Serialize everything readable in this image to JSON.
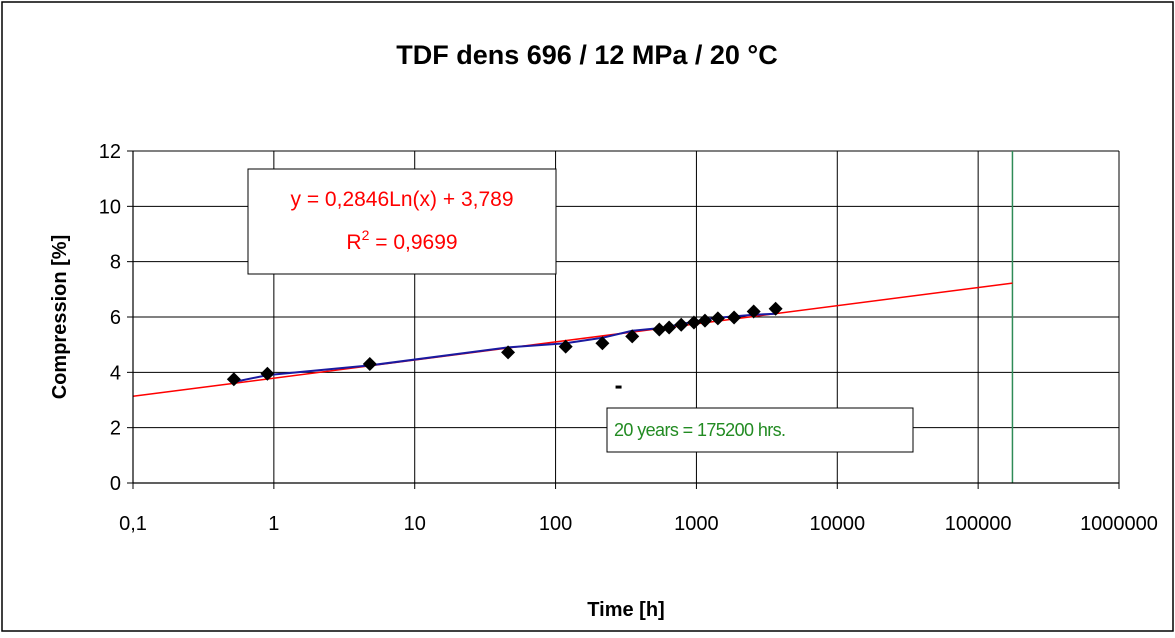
{
  "chart_data": {
    "type": "scatter",
    "title": "TDF dens 696 / 12 MPa / 20 °C",
    "xlabel": "Time [h]",
    "ylabel": "Compression [%]",
    "x_scale": "log",
    "xlim": [
      0.1,
      1000000
    ],
    "ylim": [
      0,
      12
    ],
    "x_tick_labels": [
      "0,1",
      "1",
      "10",
      "100",
      "1000",
      "10000",
      "100000",
      "1000000"
    ],
    "x_tick_values": [
      0.1,
      1,
      10,
      100,
      1000,
      10000,
      100000,
      1000000
    ],
    "y_ticks": [
      0,
      2,
      4,
      6,
      8,
      10,
      12
    ],
    "grid": true,
    "legend": "none",
    "series": [
      {
        "marker": "diamond",
        "color": "#000000",
        "x": [
          0.52,
          0.9,
          4.8,
          46,
          118,
          215,
          350,
          545,
          640,
          780,
          960,
          1150,
          1420,
          1850,
          2550,
          3650
        ],
        "y": [
          3.75,
          3.95,
          4.3,
          4.72,
          4.93,
          5.05,
          5.3,
          5.55,
          5.62,
          5.72,
          5.8,
          5.87,
          5.95,
          5.98,
          6.2,
          6.3
        ]
      }
    ],
    "connecting_line": {
      "color": "#1a1aa0",
      "x": [
        0.52,
        0.9,
        4.8,
        46,
        118,
        215,
        350,
        545,
        640,
        780,
        960,
        1150,
        1420,
        1850,
        2550,
        3650
      ],
      "y": [
        3.65,
        3.9,
        4.25,
        4.9,
        5.05,
        5.25,
        5.5,
        5.6,
        5.65,
        5.75,
        5.82,
        5.92,
        5.97,
        6.02,
        6.08,
        6.12
      ]
    },
    "trendline": {
      "type": "logarithmic",
      "slope": 0.2846,
      "intercept": 3.789,
      "color": "#ff0000",
      "x_range": [
        0.1,
        175200
      ],
      "equation": "y = 0,2846Ln(x) + 3,789",
      "r2_label": "R",
      "r2_sup": "2",
      "r2_value": " = 0,9699"
    },
    "reference_line": {
      "x": 175200,
      "color": "#2e8b57",
      "label": "20 years = 175200 hrs."
    },
    "stray_mark": {
      "x": 280,
      "y": 3.45
    },
    "colors": {
      "title": "#000000",
      "trend": "#ff0000",
      "reference": "#228b22",
      "grid": "#000000"
    }
  }
}
